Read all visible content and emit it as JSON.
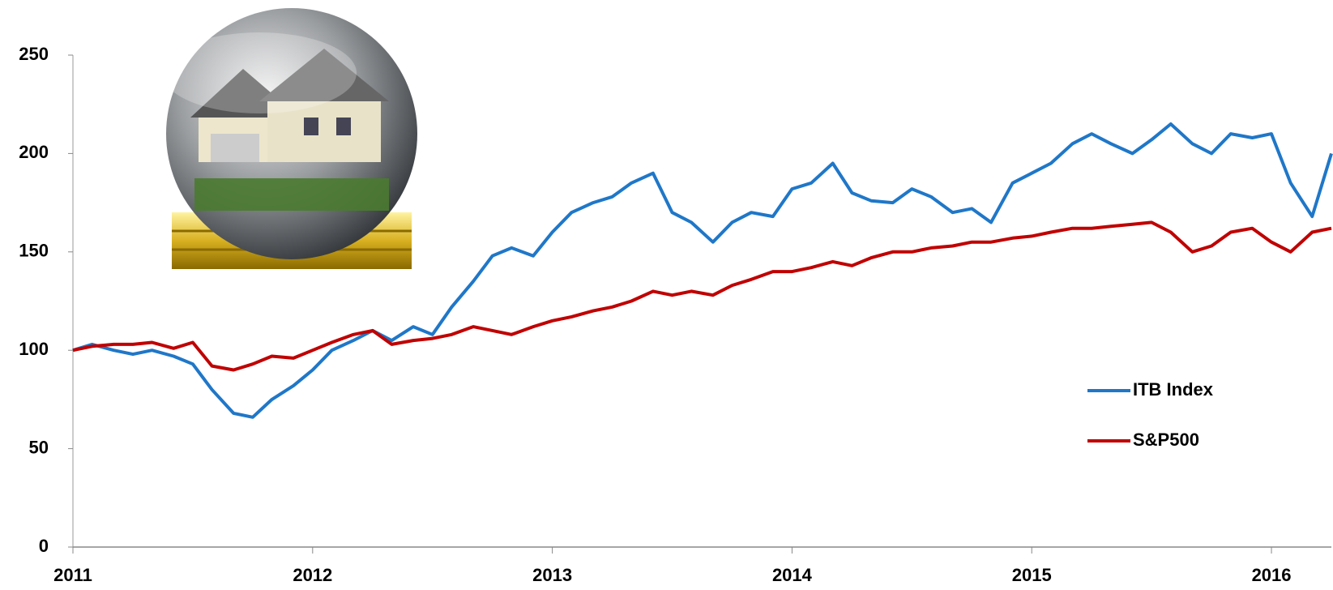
{
  "chart_data": {
    "type": "line",
    "x": [
      2011,
      2011.08,
      2011.17,
      2011.25,
      2011.33,
      2011.42,
      2011.5,
      2011.58,
      2011.67,
      2011.75,
      2011.83,
      2011.92,
      2012,
      2012.08,
      2012.17,
      2012.25,
      2012.33,
      2012.42,
      2012.5,
      2012.58,
      2012.67,
      2012.75,
      2012.83,
      2012.92,
      2013,
      2013.08,
      2013.17,
      2013.25,
      2013.33,
      2013.42,
      2013.5,
      2013.58,
      2013.67,
      2013.75,
      2013.83,
      2013.92,
      2014,
      2014.08,
      2014.17,
      2014.25,
      2014.33,
      2014.42,
      2014.5,
      2014.58,
      2014.67,
      2014.75,
      2014.83,
      2014.92,
      2015,
      2015.08,
      2015.17,
      2015.25,
      2015.33,
      2015.42,
      2015.5,
      2015.58,
      2015.67,
      2015.75,
      2015.83,
      2015.92,
      2016,
      2016.08,
      2016.17,
      2016.25
    ],
    "series": [
      {
        "name": "ITB Index",
        "color": "#1f77c8",
        "values": [
          100,
          103,
          100,
          98,
          100,
          97,
          93,
          80,
          68,
          66,
          75,
          82,
          90,
          100,
          105,
          110,
          105,
          112,
          108,
          122,
          135,
          148,
          152,
          148,
          160,
          170,
          175,
          178,
          185,
          190,
          170,
          165,
          155,
          165,
          170,
          168,
          182,
          185,
          195,
          180,
          176,
          175,
          182,
          178,
          170,
          172,
          165,
          185,
          190,
          195,
          205,
          210,
          205,
          200,
          207,
          215,
          205,
          200,
          210,
          208,
          210,
          185,
          168,
          200
        ]
      },
      {
        "name": "S&P500",
        "color": "#c00000",
        "values": [
          100,
          102,
          103,
          103,
          104,
          101,
          104,
          92,
          90,
          93,
          97,
          96,
          100,
          104,
          108,
          110,
          103,
          105,
          106,
          108,
          112,
          110,
          108,
          112,
          115,
          117,
          120,
          122,
          125,
          130,
          128,
          130,
          128,
          133,
          136,
          140,
          140,
          142,
          145,
          143,
          147,
          150,
          150,
          152,
          153,
          155,
          155,
          157,
          158,
          160,
          162,
          162,
          163,
          164,
          165,
          160,
          150,
          153,
          160,
          162,
          155,
          150,
          160,
          162
        ]
      }
    ],
    "xlim": [
      2011,
      2016.25
    ],
    "xticks": [
      2011,
      2012,
      2013,
      2014,
      2015,
      2016
    ],
    "ylim": [
      0,
      250
    ],
    "yticks": [
      0,
      50,
      100,
      150,
      200,
      250
    ],
    "grid": false,
    "legend": "right"
  }
}
